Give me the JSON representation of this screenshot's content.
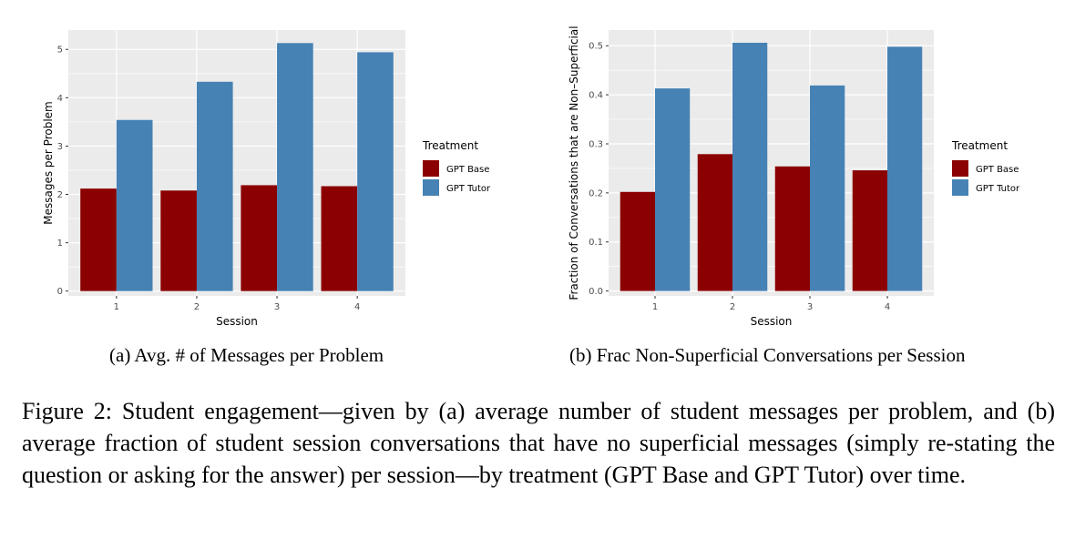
{
  "chart_data": [
    {
      "type": "bar",
      "categories": [
        "1",
        "2",
        "3",
        "4"
      ],
      "series": [
        {
          "name": "GPT Base",
          "values": [
            2.12,
            2.08,
            2.19,
            2.17
          ]
        },
        {
          "name": "GPT Tutor",
          "values": [
            3.54,
            4.33,
            5.13,
            4.94
          ]
        }
      ],
      "xlabel": "Session",
      "ylabel": "Messages per Problem",
      "ylim": [
        -0.1,
        5.4
      ],
      "yticks": [
        0,
        1,
        2,
        3,
        4,
        5
      ],
      "ytick_labels": [
        "0",
        "1",
        "2",
        "3",
        "4",
        "5"
      ],
      "legend_title": "Treatment",
      "legend_position": "right",
      "grid": true,
      "colors": {
        "GPT Base": "#8b0000",
        "GPT Tutor": "#4682b4",
        "panel": "#ebebeb",
        "grid": "#ffffff"
      }
    },
    {
      "type": "bar",
      "categories": [
        "1",
        "2",
        "3",
        "4"
      ],
      "series": [
        {
          "name": "GPT Base",
          "values": [
            0.202,
            0.279,
            0.254,
            0.246
          ]
        },
        {
          "name": "GPT Tutor",
          "values": [
            0.413,
            0.506,
            0.419,
            0.498
          ]
        }
      ],
      "xlabel": "Session",
      "ylabel": "Fraction of Conversations that are Non–Superficial",
      "ylim": [
        -0.01,
        0.532
      ],
      "yticks": [
        0,
        0.1,
        0.2,
        0.3,
        0.4,
        0.5
      ],
      "ytick_labels": [
        "0.0",
        "0.1",
        "0.2",
        "0.3",
        "0.4",
        "0.5"
      ],
      "legend_title": "Treatment",
      "legend_position": "right",
      "grid": true,
      "colors": {
        "GPT Base": "#8b0000",
        "GPT Tutor": "#4682b4",
        "panel": "#ebebeb",
        "grid": "#ffffff"
      }
    }
  ],
  "captions": {
    "a": "(a) Avg. # of Messages per Problem",
    "b": "(b) Frac Non-Superficial Conversations per Session",
    "figure": "Figure 2: Student engagement—given by (a) average number of student messages per problem, and (b) average fraction of student session conversations that have no superficial messages (simply re-stating the question or asking for the answer) per session—by treatment (GPT Base and GPT Tutor) over time."
  }
}
